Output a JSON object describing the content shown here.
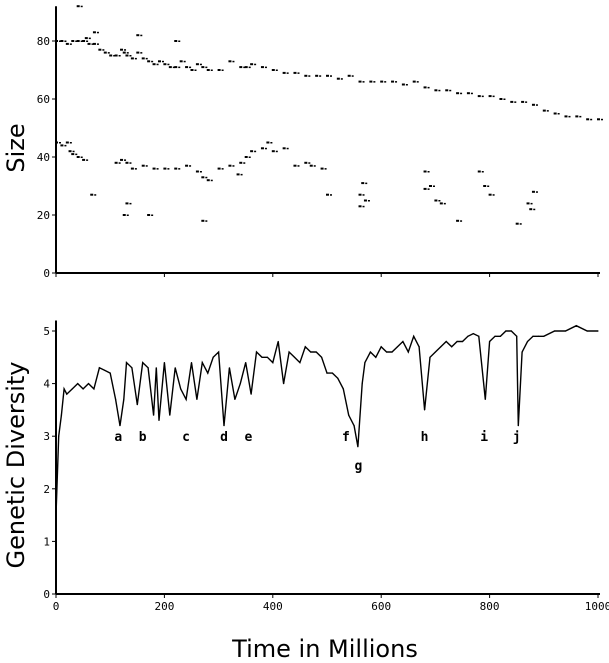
{
  "chart_data": [
    {
      "type": "scatter",
      "ylabel": "Size",
      "xlabel": "",
      "xlim": [
        0,
        1000
      ],
      "ylim": [
        0,
        92
      ],
      "yticks": [
        "0",
        "20",
        "40",
        "60",
        "80"
      ],
      "xticks": [
        0,
        200,
        400,
        600,
        800,
        1000
      ],
      "points": [
        [
          0,
          80
        ],
        [
          10,
          80
        ],
        [
          20,
          79
        ],
        [
          30,
          80
        ],
        [
          40,
          80
        ],
        [
          50,
          80
        ],
        [
          55,
          81
        ],
        [
          60,
          79
        ],
        [
          70,
          79
        ],
        [
          80,
          77
        ],
        [
          90,
          76
        ],
        [
          100,
          75
        ],
        [
          110,
          75
        ],
        [
          120,
          77
        ],
        [
          125,
          76
        ],
        [
          130,
          75
        ],
        [
          140,
          74
        ],
        [
          150,
          76
        ],
        [
          160,
          74
        ],
        [
          170,
          73
        ],
        [
          180,
          72
        ],
        [
          190,
          73
        ],
        [
          200,
          72
        ],
        [
          210,
          71
        ],
        [
          220,
          71
        ],
        [
          230,
          73
        ],
        [
          240,
          71
        ],
        [
          250,
          70
        ],
        [
          260,
          72
        ],
        [
          270,
          71
        ],
        [
          280,
          70
        ],
        [
          300,
          70
        ],
        [
          320,
          73
        ],
        [
          340,
          71
        ],
        [
          350,
          71
        ],
        [
          360,
          72
        ],
        [
          380,
          71
        ],
        [
          400,
          70
        ],
        [
          420,
          69
        ],
        [
          440,
          69
        ],
        [
          460,
          68
        ],
        [
          480,
          68
        ],
        [
          500,
          68
        ],
        [
          520,
          67
        ],
        [
          540,
          68
        ],
        [
          560,
          66
        ],
        [
          580,
          66
        ],
        [
          600,
          66
        ],
        [
          620,
          66
        ],
        [
          640,
          65
        ],
        [
          660,
          66
        ],
        [
          680,
          64
        ],
        [
          700,
          63
        ],
        [
          720,
          63
        ],
        [
          740,
          62
        ],
        [
          760,
          62
        ],
        [
          780,
          61
        ],
        [
          800,
          61
        ],
        [
          820,
          60
        ],
        [
          840,
          59
        ],
        [
          860,
          59
        ],
        [
          880,
          58
        ],
        [
          900,
          56
        ],
        [
          920,
          55
        ],
        [
          940,
          54
        ],
        [
          960,
          54
        ],
        [
          980,
          53
        ],
        [
          1000,
          53
        ],
        [
          40,
          92
        ],
        [
          70,
          83
        ],
        [
          150,
          82
        ],
        [
          220,
          80
        ],
        [
          0,
          45
        ],
        [
          10,
          44
        ],
        [
          20,
          45
        ],
        [
          25,
          42
        ],
        [
          30,
          41
        ],
        [
          40,
          40
        ],
        [
          50,
          39
        ],
        [
          110,
          38
        ],
        [
          120,
          39
        ],
        [
          130,
          38
        ],
        [
          140,
          36
        ],
        [
          160,
          37
        ],
        [
          180,
          36
        ],
        [
          200,
          36
        ],
        [
          220,
          36
        ],
        [
          240,
          37
        ],
        [
          260,
          35
        ],
        [
          270,
          33
        ],
        [
          280,
          32
        ],
        [
          300,
          36
        ],
        [
          320,
          37
        ],
        [
          340,
          38
        ],
        [
          350,
          40
        ],
        [
          360,
          42
        ],
        [
          380,
          43
        ],
        [
          390,
          45
        ],
        [
          400,
          42
        ],
        [
          420,
          43
        ],
        [
          440,
          37
        ],
        [
          460,
          38
        ],
        [
          470,
          37
        ],
        [
          490,
          36
        ],
        [
          500,
          27
        ],
        [
          560,
          27
        ],
        [
          560,
          23
        ],
        [
          570,
          25
        ],
        [
          565,
          31
        ],
        [
          680,
          29
        ],
        [
          690,
          30
        ],
        [
          700,
          25
        ],
        [
          710,
          24
        ],
        [
          790,
          30
        ],
        [
          800,
          27
        ],
        [
          870,
          24
        ],
        [
          875,
          22
        ],
        [
          880,
          28
        ],
        [
          65,
          27
        ],
        [
          125,
          20
        ],
        [
          130,
          24
        ],
        [
          170,
          20
        ],
        [
          270,
          18
        ],
        [
          335,
          34
        ],
        [
          740,
          18
        ],
        [
          850,
          17
        ],
        [
          780,
          35
        ],
        [
          680,
          35
        ]
      ]
    },
    {
      "type": "line",
      "ylabel": "Genetic Diversity",
      "xlabel": "Time in Millions",
      "xlim": [
        0,
        1000
      ],
      "ylim": [
        0,
        5.2
      ],
      "yticks": [
        "0",
        "1",
        "2",
        "3",
        "4",
        "5"
      ],
      "xticks": [
        "0",
        "200",
        "400",
        "600",
        "800",
        "1000"
      ],
      "x": [
        0,
        5,
        10,
        15,
        20,
        30,
        40,
        50,
        60,
        70,
        80,
        90,
        100,
        110,
        118,
        125,
        130,
        140,
        150,
        160,
        170,
        180,
        185,
        190,
        200,
        210,
        220,
        230,
        240,
        250,
        260,
        270,
        280,
        290,
        300,
        310,
        320,
        330,
        340,
        350,
        360,
        370,
        380,
        390,
        400,
        410,
        420,
        430,
        440,
        450,
        460,
        470,
        480,
        490,
        500,
        510,
        520,
        530,
        540,
        550,
        557,
        565,
        570,
        580,
        590,
        600,
        610,
        620,
        630,
        640,
        650,
        660,
        670,
        680,
        690,
        700,
        710,
        720,
        730,
        740,
        750,
        760,
        770,
        780,
        792,
        800,
        810,
        820,
        830,
        840,
        850,
        853,
        860,
        870,
        880,
        890,
        900,
        920,
        940,
        960,
        980,
        1000
      ],
      "y": [
        1.5,
        3.0,
        3.4,
        3.9,
        3.8,
        3.9,
        4.0,
        3.9,
        4.0,
        3.9,
        4.3,
        4.25,
        4.2,
        3.7,
        3.2,
        3.7,
        4.4,
        4.3,
        3.6,
        4.4,
        4.3,
        3.4,
        4.3,
        3.3,
        4.4,
        3.4,
        4.3,
        3.9,
        3.7,
        4.4,
        3.7,
        4.4,
        4.2,
        4.5,
        4.6,
        3.2,
        4.3,
        3.7,
        4.0,
        4.4,
        3.8,
        4.6,
        4.5,
        4.5,
        4.4,
        4.8,
        4.0,
        4.6,
        4.5,
        4.4,
        4.7,
        4.6,
        4.6,
        4.5,
        4.2,
        4.2,
        4.1,
        3.9,
        3.4,
        3.2,
        2.8,
        4.0,
        4.4,
        4.6,
        4.5,
        4.7,
        4.6,
        4.6,
        4.7,
        4.8,
        4.6,
        4.9,
        4.7,
        3.5,
        4.5,
        4.6,
        4.7,
        4.8,
        4.7,
        4.8,
        4.8,
        4.9,
        4.95,
        4.9,
        3.7,
        4.8,
        4.9,
        4.9,
        5.0,
        5.0,
        4.9,
        3.2,
        4.6,
        4.8,
        4.9,
        4.9,
        4.9,
        5.0,
        5.0,
        5.1,
        5.0,
        5.0
      ],
      "annotations": [
        {
          "label": "a",
          "x": 115,
          "y": 3.0
        },
        {
          "label": "b",
          "x": 160,
          "y": 3.0
        },
        {
          "label": "c",
          "x": 240,
          "y": 3.0
        },
        {
          "label": "d",
          "x": 310,
          "y": 3.0
        },
        {
          "label": "e",
          "x": 355,
          "y": 3.0
        },
        {
          "label": "f",
          "x": 535,
          "y": 3.0
        },
        {
          "label": "g",
          "x": 558,
          "y": 2.45
        },
        {
          "label": "h",
          "x": 680,
          "y": 3.0
        },
        {
          "label": "i",
          "x": 790,
          "y": 3.0
        },
        {
          "label": "j",
          "x": 850,
          "y": 3.0
        }
      ]
    }
  ]
}
